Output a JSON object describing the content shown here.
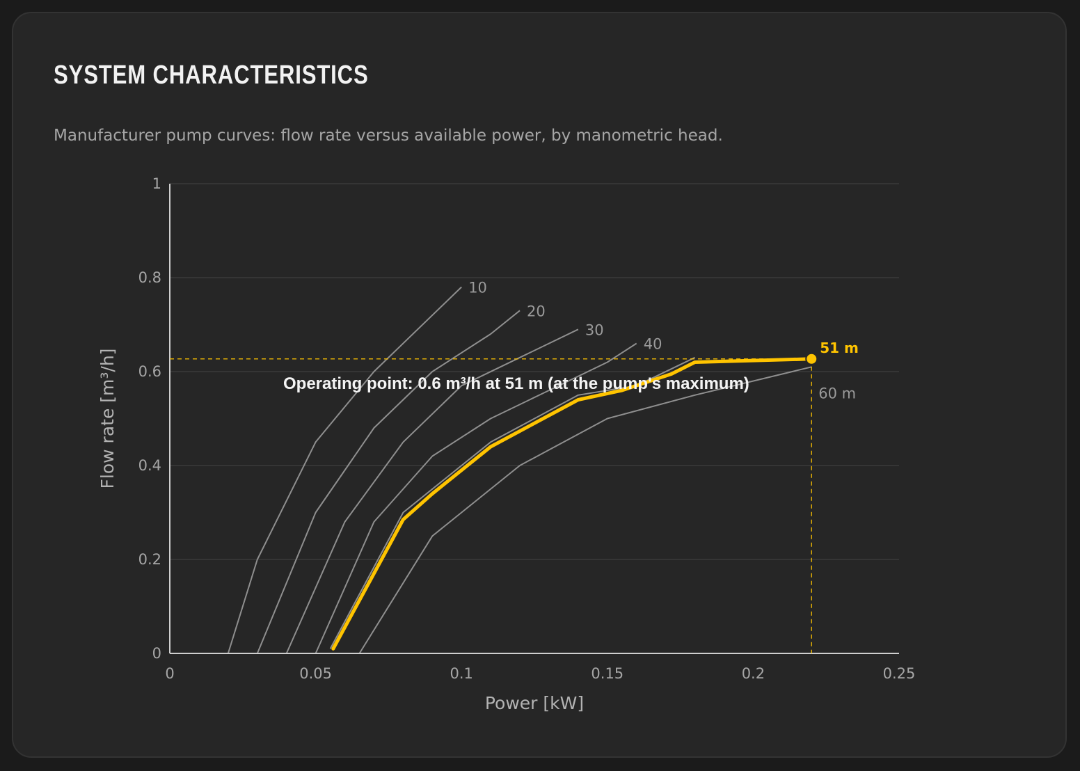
{
  "header": {
    "title": "SYSTEM CHARACTERISTICS",
    "subtitle": "Manufacturer pump curves: flow rate versus available power, by manometric head."
  },
  "colors": {
    "background": "#262626",
    "curve": "#8f8f8f",
    "highlight": "#ffc400",
    "grid": "#3a3a3a",
    "axis": "#cfcfcf"
  },
  "chart_data": {
    "type": "line",
    "title": "",
    "xlabel": "Power [kW]",
    "ylabel": "Flow rate [m³/h]",
    "xlim": [
      0,
      0.25
    ],
    "ylim": [
      0,
      1
    ],
    "xticks": [
      "0",
      "0.05",
      "0.1",
      "0.15",
      "0.2",
      "0.25"
    ],
    "yticks": [
      "0",
      "0.2",
      "0.4",
      "0.6",
      "0.8",
      "1"
    ],
    "grid": true,
    "series": [
      {
        "name": "10",
        "x": [
          0.02,
          0.03,
          0.05,
          0.07,
          0.1
        ],
        "y": [
          0,
          0.2,
          0.45,
          0.6,
          0.78
        ]
      },
      {
        "name": "20",
        "x": [
          0.03,
          0.05,
          0.07,
          0.09,
          0.11,
          0.12
        ],
        "y": [
          0,
          0.3,
          0.48,
          0.6,
          0.68,
          0.73
        ]
      },
      {
        "name": "30",
        "x": [
          0.04,
          0.06,
          0.08,
          0.1,
          0.12,
          0.14
        ],
        "y": [
          0,
          0.28,
          0.45,
          0.57,
          0.63,
          0.69
        ]
      },
      {
        "name": "40",
        "x": [
          0.05,
          0.07,
          0.09,
          0.11,
          0.13,
          0.15,
          0.16
        ],
        "y": [
          0,
          0.28,
          0.42,
          0.5,
          0.56,
          0.62,
          0.66
        ]
      },
      {
        "name": "",
        "x": [
          0.055,
          0.08,
          0.11,
          0.14,
          0.16,
          0.18
        ],
        "y": [
          0.01,
          0.3,
          0.45,
          0.55,
          0.57,
          0.63
        ]
      },
      {
        "name": "60 m",
        "x": [
          0.065,
          0.09,
          0.12,
          0.15,
          0.18,
          0.22
        ],
        "y": [
          0,
          0.25,
          0.4,
          0.5,
          0.55,
          0.61
        ]
      }
    ],
    "highlight_series": {
      "name": "51 m",
      "x": [
        0.056,
        0.08,
        0.09,
        0.11,
        0.14,
        0.155,
        0.172,
        0.18,
        0.22
      ],
      "y": [
        0.01,
        0.285,
        0.34,
        0.44,
        0.54,
        0.56,
        0.595,
        0.62,
        0.627
      ]
    },
    "operating_point": {
      "x": 0.22,
      "y": 0.627,
      "label": "51 m"
    },
    "annotation": "Operating point: 0.6 m³/h at 51 m (at the pump's maximum)"
  }
}
